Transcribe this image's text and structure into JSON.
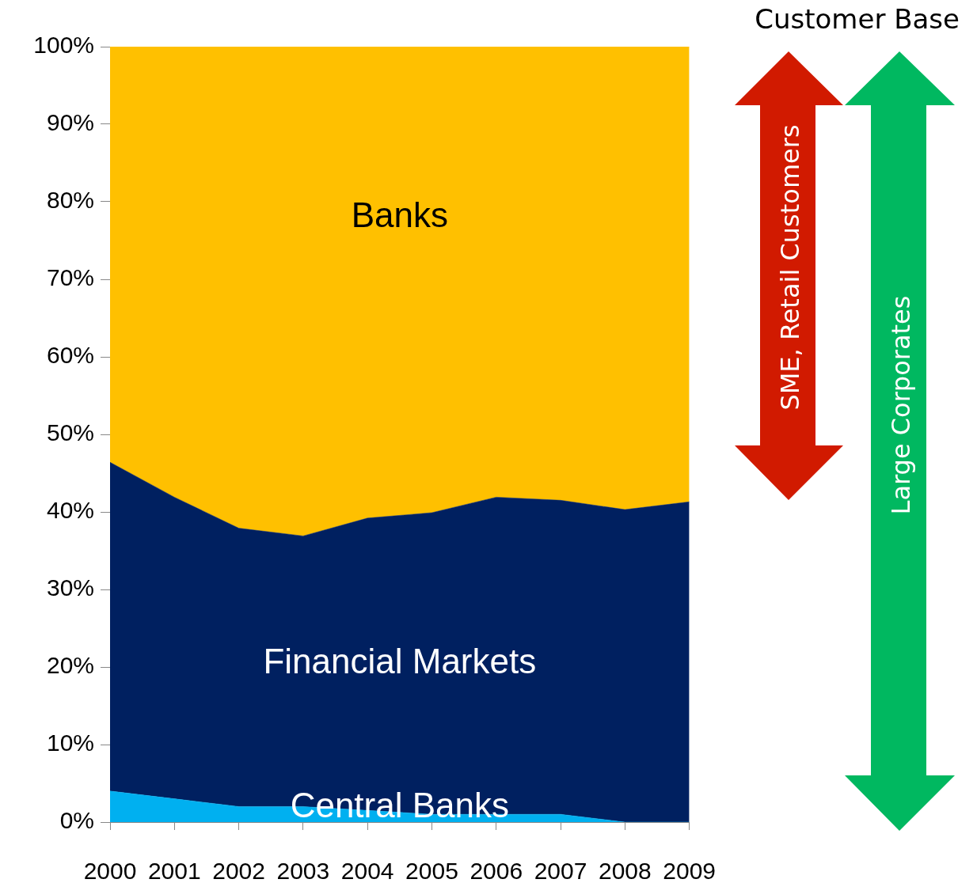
{
  "chart_data": {
    "type": "area",
    "stacked": true,
    "categories": [
      "2000",
      "2001",
      "2002",
      "2003",
      "2004",
      "2005",
      "2006",
      "2007",
      "2008",
      "2009"
    ],
    "series": [
      {
        "name": "Central Banks",
        "color": "#00b0f0",
        "values": [
          4,
          3,
          2,
          2,
          1.5,
          1,
          1,
          1,
          0,
          0
        ]
      },
      {
        "name": "Financial Markets",
        "color": "#002060",
        "values": [
          42.4,
          38.9,
          35.9,
          34.9,
          37.7,
          38.9,
          40.9,
          40.5,
          40.3,
          41.3
        ]
      },
      {
        "name": "Banks",
        "color": "#ffc000",
        "values": [
          53.6,
          58.1,
          62.1,
          63.1,
          60.8,
          60.1,
          58.1,
          58.5,
          59.7,
          58.7
        ]
      }
    ],
    "ylim": [
      0,
      100
    ],
    "yticks": [
      {
        "value": 0,
        "label": "0%"
      },
      {
        "value": 10,
        "label": "10%"
      },
      {
        "value": 20,
        "label": "20%"
      },
      {
        "value": 30,
        "label": "30%"
      },
      {
        "value": 40,
        "label": "40%"
      },
      {
        "value": 50,
        "label": "50%"
      },
      {
        "value": 60,
        "label": "60%"
      },
      {
        "value": 70,
        "label": "70%"
      },
      {
        "value": 80,
        "label": "80%"
      },
      {
        "value": 90,
        "label": "90%"
      },
      {
        "value": 100,
        "label": "100%"
      }
    ],
    "grid": false,
    "legend": false,
    "annotations": [
      "Customer Base",
      "SME, Retail Customers",
      "Large Corporates"
    ]
  }
}
